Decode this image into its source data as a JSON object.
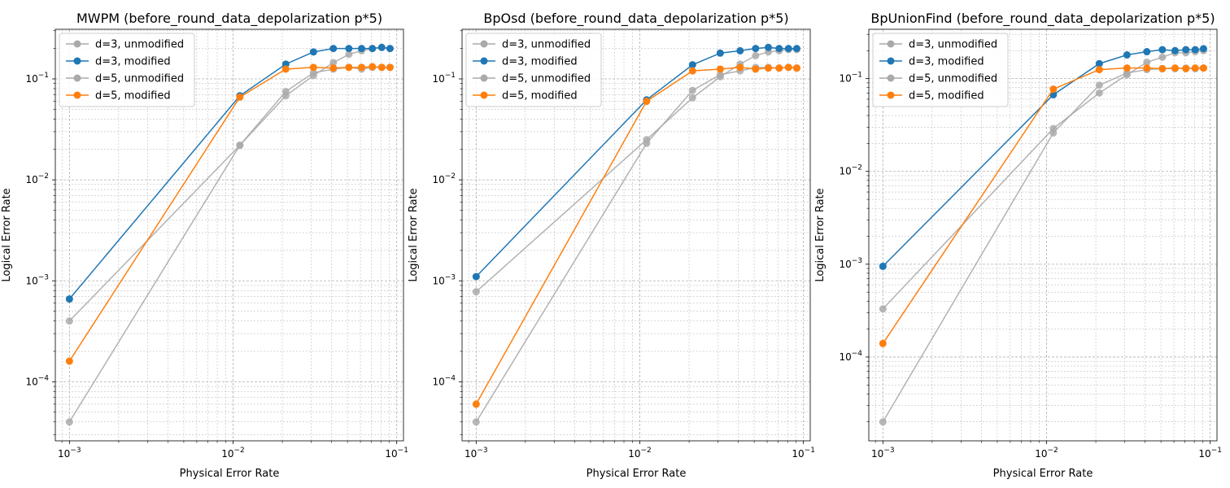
{
  "chart_data": [
    {
      "type": "line",
      "title": "MWPM (before_round_data_depolarization p*5)",
      "xlabel": "Physical Error Rate",
      "ylabel": "Logical Error Rate",
      "xscale": "log",
      "yscale": "log",
      "xlim": [
        0.00082,
        0.11
      ],
      "ylim": [
        2.6e-05,
        0.31
      ],
      "xticks": [
        {
          "value": 0.001,
          "base": "10",
          "exp": "−3"
        },
        {
          "value": 0.01,
          "base": "10",
          "exp": "−2"
        },
        {
          "value": 0.1,
          "base": "10",
          "exp": "−1"
        }
      ],
      "yticks": [
        {
          "value": 0.0001,
          "base": "10",
          "exp": "−4"
        },
        {
          "value": 0.001,
          "base": "10",
          "exp": "−3"
        },
        {
          "value": 0.01,
          "base": "10",
          "exp": "−2"
        },
        {
          "value": 0.1,
          "base": "10",
          "exp": "−1"
        }
      ],
      "grid": true,
      "legend_position": "top-left",
      "x": [
        0.001,
        0.011,
        0.021,
        0.031,
        0.041,
        0.051,
        0.061,
        0.071,
        0.081,
        0.091
      ],
      "series": [
        {
          "name": "d=3, unmodified",
          "color": "#aaaaaa",
          "values": [
            0.0004,
            0.022,
            0.068,
            0.108,
            0.145,
            0.175,
            0.19,
            0.2,
            0.205,
            0.2
          ]
        },
        {
          "name": "d=3, modified",
          "color": "#1f77b4",
          "values": [
            0.00066,
            0.068,
            0.14,
            0.185,
            0.2,
            0.2,
            0.2,
            0.2,
            0.205,
            0.2
          ]
        },
        {
          "name": "d=5, unmodified",
          "color": "#aaaaaa",
          "values": [
            4e-05,
            0.022,
            0.075,
            0.115,
            0.125,
            0.13,
            0.125,
            0.13,
            0.13,
            0.13
          ]
        },
        {
          "name": "d=5, modified",
          "color": "#ff7f0e",
          "values": [
            0.00016,
            0.066,
            0.125,
            0.13,
            0.128,
            0.13,
            0.13,
            0.132,
            0.13,
            0.13
          ]
        }
      ]
    },
    {
      "type": "line",
      "title": "BpOsd (before_round_data_depolarization p*5)",
      "xlabel": "Physical Error Rate",
      "ylabel": "Logical Error Rate",
      "xscale": "log",
      "yscale": "log",
      "xlim": [
        0.00082,
        0.11
      ],
      "ylim": [
        2.6e-05,
        0.31
      ],
      "xticks": [
        {
          "value": 0.001,
          "base": "10",
          "exp": "−3"
        },
        {
          "value": 0.01,
          "base": "10",
          "exp": "−2"
        },
        {
          "value": 0.1,
          "base": "10",
          "exp": "−1"
        }
      ],
      "yticks": [
        {
          "value": 0.0001,
          "base": "10",
          "exp": "−4"
        },
        {
          "value": 0.001,
          "base": "10",
          "exp": "−3"
        },
        {
          "value": 0.01,
          "base": "10",
          "exp": "−2"
        },
        {
          "value": 0.1,
          "base": "10",
          "exp": "−1"
        }
      ],
      "grid": true,
      "legend_position": "top-left",
      "x": [
        0.001,
        0.011,
        0.021,
        0.031,
        0.041,
        0.051,
        0.061,
        0.071,
        0.081,
        0.091
      ],
      "series": [
        {
          "name": "d=3, unmodified",
          "color": "#aaaaaa",
          "values": [
            0.00078,
            0.025,
            0.065,
            0.105,
            0.14,
            0.17,
            0.185,
            0.19,
            0.195,
            0.195
          ]
        },
        {
          "name": "d=3, modified",
          "color": "#1f77b4",
          "values": [
            0.0011,
            0.062,
            0.138,
            0.18,
            0.19,
            0.2,
            0.205,
            0.2,
            0.2,
            0.2
          ]
        },
        {
          "name": "d=5, unmodified",
          "color": "#aaaaaa",
          "values": [
            4e-05,
            0.023,
            0.077,
            0.11,
            0.12,
            0.13,
            0.13,
            0.128,
            0.13,
            0.128
          ]
        },
        {
          "name": "d=5, modified",
          "color": "#ff7f0e",
          "values": [
            6e-05,
            0.06,
            0.12,
            0.125,
            0.13,
            0.125,
            0.128,
            0.128,
            0.13,
            0.128
          ]
        }
      ]
    },
    {
      "type": "line",
      "title": "BpUnionFind (before_round_data_depolarization p*5)",
      "xlabel": "Physical Error Rate",
      "ylabel": "Logical Error Rate",
      "xscale": "log",
      "yscale": "log",
      "xlim": [
        0.00082,
        0.11
      ],
      "ylim": [
        1.25e-05,
        0.34
      ],
      "xticks": [
        {
          "value": 0.001,
          "base": "10",
          "exp": "−3"
        },
        {
          "value": 0.01,
          "base": "10",
          "exp": "−2"
        },
        {
          "value": 0.1,
          "base": "10",
          "exp": "−1"
        }
      ],
      "yticks": [
        {
          "value": 0.0001,
          "base": "10",
          "exp": "−4"
        },
        {
          "value": 0.001,
          "base": "10",
          "exp": "−3"
        },
        {
          "value": 0.01,
          "base": "10",
          "exp": "−2"
        },
        {
          "value": 0.1,
          "base": "10",
          "exp": "−1"
        }
      ],
      "grid": true,
      "legend_position": "top-left",
      "x": [
        0.001,
        0.011,
        0.021,
        0.031,
        0.041,
        0.051,
        0.061,
        0.071,
        0.081,
        0.091
      ],
      "series": [
        {
          "name": "d=3, unmodified",
          "color": "#aaaaaa",
          "values": [
            0.00033,
            0.029,
            0.07,
            0.11,
            0.15,
            0.17,
            0.19,
            0.19,
            0.195,
            0.2
          ]
        },
        {
          "name": "d=3, modified",
          "color": "#1f77b4",
          "values": [
            0.00095,
            0.067,
            0.145,
            0.18,
            0.195,
            0.205,
            0.2,
            0.205,
            0.205,
            0.21
          ]
        },
        {
          "name": "d=5, unmodified",
          "color": "#aaaaaa",
          "values": [
            2e-05,
            0.026,
            0.085,
            0.115,
            0.125,
            0.128,
            0.128,
            0.13,
            0.128,
            0.13
          ]
        },
        {
          "name": "d=5, modified",
          "color": "#ff7f0e",
          "values": [
            0.00014,
            0.077,
            0.125,
            0.13,
            0.13,
            0.128,
            0.13,
            0.128,
            0.13,
            0.13
          ]
        }
      ]
    }
  ]
}
